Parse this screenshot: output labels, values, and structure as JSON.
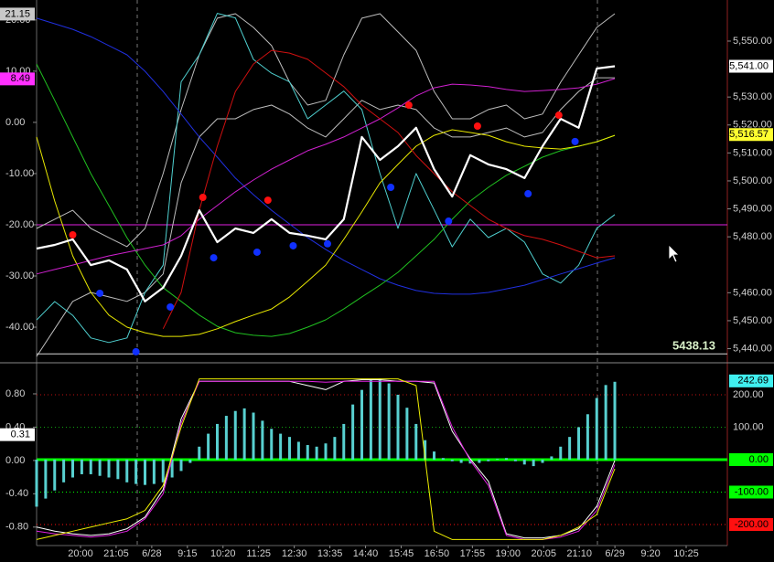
{
  "chart_data": [
    {
      "type": "line",
      "x": [
        0,
        1,
        2,
        3,
        4,
        5,
        6,
        7,
        8,
        9,
        10,
        11,
        12,
        13,
        14,
        15,
        16,
        17,
        18,
        19,
        20,
        21,
        22,
        23,
        24,
        25,
        26,
        27,
        28,
        29,
        30,
        31,
        32
      ],
      "ylim": [
        -46.6,
        23.9
      ],
      "y2lim": [
        5435.6,
        5564.7
      ],
      "yticks": [
        {
          "value": 20,
          "label": "20.00"
        },
        {
          "value": 10,
          "label": "10.00"
        },
        {
          "value": 0,
          "label": "0.00"
        },
        {
          "value": -10,
          "label": "-10.00"
        },
        {
          "value": -20,
          "label": "-20.00"
        },
        {
          "value": -30,
          "label": "-30.00"
        },
        {
          "value": -40,
          "label": "-40.00"
        }
      ],
      "y2ticks": [
        {
          "value": 5550,
          "label": "5,550.00"
        },
        {
          "value": 5530,
          "label": "5,530.00"
        },
        {
          "value": 5520,
          "label": "5,520.00"
        },
        {
          "value": 5510,
          "label": "5,510.00"
        },
        {
          "value": 5500,
          "label": "5,500.00"
        },
        {
          "value": 5490,
          "label": "5,490.00"
        },
        {
          "value": 5480,
          "label": "5,480.00"
        },
        {
          "value": 5460,
          "label": "5,460.00"
        },
        {
          "value": 5450,
          "label": "5,450.00"
        },
        {
          "value": 5440,
          "label": "5,440.00"
        }
      ],
      "series": [
        {
          "type": "line",
          "axis": "y2",
          "color": "#bdbdbd",
          "values": [
            5483.0,
            5486.3,
            5489.5,
            5483.0,
            5479.7,
            5476.5,
            5483.0,
            5502.6,
            5525.5,
            5545.1,
            5558.2,
            5559.8,
            5554.9,
            5548.4,
            5535.3,
            5527.1,
            5528.8,
            5545.1,
            5558.2,
            5559.8,
            5553.3,
            5546.7,
            5532.0,
            5522.2,
            5522.2,
            5525.5,
            5527.1,
            5522.2,
            5523.9,
            5535.3,
            5545.1,
            5554.9,
            5559.8
          ]
        },
        {
          "type": "line",
          "axis": "y2",
          "color": "#bdbdbd",
          "values": [
            5437.2,
            5447.1,
            5456.9,
            5460.1,
            5458.5,
            5456.9,
            5460.1,
            5466.7,
            5499.3,
            5515.7,
            5522.2,
            5522.2,
            5525.5,
            5527.1,
            5523.9,
            5518.9,
            5515.7,
            5522.2,
            5528.8,
            5525.5,
            5527.1,
            5525.5,
            5518.9,
            5515.7,
            5515.7,
            5517.3,
            5518.9,
            5515.7,
            5517.3,
            5525.5,
            5532.0,
            5536.9,
            5536.9
          ]
        },
        {
          "type": "line",
          "axis": "y",
          "color": "#4fd0d0",
          "values": [
            -38.6,
            -35.0,
            -37.7,
            -42.1,
            -43.0,
            -42.1,
            -33.2,
            -27.9,
            7.9,
            13.2,
            21.3,
            20.4,
            12.3,
            9.6,
            7.9,
            0.7,
            3.4,
            6.1,
            2.5,
            -10.0,
            -20.7,
            -10.0,
            -17.1,
            -24.3,
            -18.9,
            -22.5,
            -20.7,
            -23.4,
            -29.6,
            -31.4,
            -27.9,
            -20.7,
            -18.0
          ]
        },
        {
          "type": "line",
          "axis": "y2",
          "color": "#2030e0",
          "values": [
            5558.2,
            5556.2,
            5554.2,
            5551.6,
            5548.4,
            5545.1,
            5539.2,
            5532.0,
            5523.9,
            5515.7,
            5508.5,
            5501.0,
            5495.1,
            5489.5,
            5484.6,
            5479.7,
            5475.5,
            5471.6,
            5468.3,
            5465.0,
            5462.7,
            5460.8,
            5459.8,
            5459.5,
            5459.5,
            5460.1,
            5461.4,
            5462.7,
            5464.7,
            5466.7,
            5468.6,
            5470.6,
            5472.5
          ]
        },
        {
          "type": "line",
          "axis": "y2",
          "color": "#20c020",
          "values": [
            5541.8,
            5528.8,
            5515.7,
            5502.6,
            5491.2,
            5479.7,
            5469.9,
            5461.8,
            5456.9,
            5452.0,
            5448.0,
            5445.7,
            5444.8,
            5444.4,
            5445.4,
            5447.7,
            5450.3,
            5454.2,
            5458.5,
            5462.7,
            5467.3,
            5473.2,
            5479.1,
            5486.3,
            5492.8,
            5497.7,
            5502.0,
            5505.2,
            5508.5,
            5510.8,
            5512.4,
            5514.0,
            5516.3
          ]
        },
        {
          "type": "line",
          "axis": "y2",
          "color": "#e8e800",
          "values": [
            5515.7,
            5492.8,
            5473.2,
            5460.1,
            5452.0,
            5447.7,
            5445.7,
            5444.4,
            5444.4,
            5445.1,
            5447.1,
            5449.7,
            5452.0,
            5454.2,
            5458.5,
            5464.1,
            5469.9,
            5479.1,
            5488.9,
            5499.3,
            5505.9,
            5512.4,
            5516.3,
            5518.3,
            5517.3,
            5516.3,
            5514.0,
            5512.4,
            5511.8,
            5511.4,
            5512.4,
            5514.0,
            5516.3
          ]
        },
        {
          "type": "line",
          "axis": "y2",
          "color": "#d020d0",
          "values": [
            5466.7,
            5468.3,
            5469.9,
            5471.6,
            5473.2,
            5474.5,
            5475.8,
            5477.1,
            5480.4,
            5486.3,
            5491.2,
            5496.1,
            5500.3,
            5504.2,
            5507.5,
            5510.8,
            5513.1,
            5515.7,
            5518.9,
            5522.2,
            5526.1,
            5530.4,
            5533.3,
            5534.6,
            5534.3,
            5533.7,
            5532.7,
            5532.0,
            5532.3,
            5532.7,
            5533.3,
            5534.6,
            5536.6
          ]
        },
        {
          "type": "line",
          "axis": "y2",
          "color": "#d01010",
          "values": [
            null,
            null,
            null,
            null,
            null,
            null,
            null,
            5447.1,
            5460.1,
            5489.5,
            5512.4,
            5532.0,
            5541.8,
            5546.7,
            5545.7,
            5543.5,
            5538.6,
            5533.7,
            5527.1,
            5522.2,
            5517.3,
            5509.1,
            5502.6,
            5496.1,
            5491.2,
            5486.3,
            5483.0,
            5480.4,
            5479.1,
            5477.1,
            5474.8,
            5472.5,
            5473.2
          ]
        },
        {
          "type": "line",
          "axis": "y2",
          "color": "#ffffff",
          "width": 2.2,
          "values": [
            5475.8,
            5477.1,
            5479.1,
            5469.9,
            5471.6,
            5468.3,
            5456.9,
            5461.8,
            5473.2,
            5489.5,
            5478.1,
            5483.0,
            5481.4,
            5486.3,
            5481.4,
            5480.4,
            5479.1,
            5486.3,
            5515.7,
            5507.5,
            5512.4,
            5519.0,
            5504.2,
            5494.4,
            5509.2,
            5505.9,
            5504.2,
            5501.0,
            5512.4,
            5522.2,
            5519.0,
            5540.2,
            5541.0
          ]
        },
        {
          "type": "scatter",
          "axis": "y2",
          "color": "#ff1010",
          "x": [
            2.0,
            9.2,
            12.8,
            20.6,
            24.4,
            28.9
          ],
          "values": [
            5480.7,
            5494.1,
            5493.1,
            5527.1,
            5519.6,
            5523.5
          ]
        },
        {
          "type": "scatter",
          "axis": "y2",
          "color": "#1030ff",
          "x": [
            3.5,
            5.5,
            7.4,
            9.8,
            12.2,
            14.2,
            16.1,
            19.6,
            22.8,
            27.2,
            29.8
          ],
          "values": [
            5459.8,
            5438.9,
            5454.9,
            5472.5,
            5474.5,
            5476.8,
            5477.5,
            5497.7,
            5485.6,
            5495.4,
            5514.1
          ]
        }
      ],
      "levels": [
        {
          "value": -20,
          "axis": "y",
          "color": "#e020e0"
        },
        {
          "value": 5438.13,
          "label": "5438.13",
          "axis": "y2",
          "color": "#d8d8d8",
          "label_color": "#d8f0c8"
        }
      ],
      "markers": [
        {
          "value": 21.15,
          "label": "21.15",
          "axis": "y",
          "color": "#c8c8c8"
        },
        {
          "value": 8.49,
          "label": "8.49",
          "axis": "y",
          "color": "#ff30ff"
        },
        {
          "value": 5541,
          "label": "5,541.00",
          "axis": "y2",
          "color": "#ffffff"
        },
        {
          "value": 5516.57,
          "label": "5,516.57",
          "axis": "y2",
          "color": "#ffff30"
        }
      ]
    },
    {
      "type": "bar",
      "x": [
        0,
        1,
        2,
        3,
        4,
        5,
        6,
        7,
        8,
        9,
        10,
        11,
        12,
        13,
        14,
        15,
        16,
        17,
        18,
        19,
        20,
        21,
        22,
        23,
        24,
        25,
        26,
        27,
        28,
        29,
        30,
        31,
        32
      ],
      "ylim": [
        -1.0,
        1.14
      ],
      "y2lim": [
        -259.2,
        290.1
      ],
      "yticks": [
        {
          "value": 0.8,
          "label": "0.80"
        },
        {
          "value": 0.4,
          "label": "0.40"
        },
        {
          "value": 0,
          "label": "0.00"
        },
        {
          "value": -0.4,
          "label": "-0.40"
        },
        {
          "value": -0.8,
          "label": "-0.80"
        }
      ],
      "y2ticks": [
        {
          "value": 200,
          "label": "200.00"
        },
        {
          "value": 100,
          "label": "100.00"
        },
        {
          "value": 0,
          "label": "0.00"
        },
        {
          "value": -100,
          "label": "-100.00"
        },
        {
          "value": -200,
          "label": "-200.00"
        }
      ],
      "y2grid_colors": [
        "#c01010",
        "#10a010",
        "#00ff00",
        "#00ff00",
        "#ff1010"
      ],
      "y2grid_styles": [
        "dotted",
        "dotted",
        "solid",
        "dotted",
        "dotted"
      ],
      "y2tick_boxes": [
        false,
        false,
        true,
        true,
        true
      ],
      "series": [
        {
          "type": "bar",
          "axis": "y2",
          "color": "#58d0d0",
          "x": [
            0,
            0.5,
            1,
            1.5,
            2,
            2.5,
            3,
            3.5,
            4,
            4.5,
            5,
            5.5,
            6,
            6.5,
            7,
            7.5,
            8,
            8.5,
            9,
            9.5,
            10,
            10.5,
            11,
            11.5,
            12,
            12.5,
            13,
            13.5,
            14,
            14.5,
            15,
            15.5,
            16,
            16.5,
            17,
            17.5,
            18,
            18.5,
            19,
            19.5,
            20,
            20.5,
            21,
            21.5,
            22,
            22.5,
            23,
            23.5,
            24,
            24.5,
            25,
            25.5,
            26,
            26.5,
            27,
            27.5,
            28,
            28.5,
            29,
            29.5,
            30,
            30.5,
            31,
            31.5,
            32
          ],
          "values": [
            -145,
            -120,
            -95,
            -70,
            -55,
            -45,
            -45,
            -50,
            -55,
            -60,
            -70,
            -75,
            -78,
            -75,
            -70,
            -55,
            -35,
            -10,
            40,
            80,
            110,
            135,
            150,
            158,
            145,
            120,
            95,
            80,
            70,
            55,
            45,
            40,
            50,
            70,
            110,
            170,
            215,
            245,
            250,
            235,
            200,
            160,
            110,
            60,
            25,
            5,
            -5,
            -10,
            -12,
            -10,
            -5,
            2,
            5,
            -5,
            -15,
            -20,
            -10,
            10,
            40,
            70,
            100,
            140,
            190,
            230,
            240
          ]
        },
        {
          "type": "line",
          "axis": "y",
          "color": "#ffffff",
          "values": [
            -0.8,
            -0.85,
            -0.88,
            -0.9,
            -0.88,
            -0.82,
            -0.68,
            -0.35,
            0.5,
            0.95,
            0.95,
            0.95,
            0.95,
            0.95,
            0.95,
            0.9,
            0.85,
            0.95,
            0.97,
            0.97,
            0.95,
            0.95,
            0.93,
            0.35,
            0.02,
            -0.25,
            -0.88,
            -0.93,
            -0.93,
            -0.9,
            -0.82,
            -0.55,
            0.0
          ]
        },
        {
          "type": "line",
          "axis": "y",
          "color": "#e020e0",
          "values": [
            -0.85,
            -0.88,
            -0.9,
            -0.92,
            -0.9,
            -0.85,
            -0.7,
            -0.4,
            0.45,
            0.95,
            0.95,
            0.95,
            0.95,
            0.95,
            0.95,
            0.95,
            0.94,
            0.95,
            0.95,
            0.95,
            0.95,
            0.95,
            0.95,
            0.4,
            0.0,
            -0.3,
            -0.9,
            -0.95,
            -0.95,
            -0.92,
            -0.85,
            -0.6,
            -0.05
          ]
        },
        {
          "type": "line",
          "axis": "y",
          "color": "#f0f000",
          "values": [
            -0.95,
            -0.9,
            -0.85,
            -0.8,
            -0.75,
            -0.7,
            -0.6,
            -0.3,
            0.4,
            0.98,
            0.98,
            0.98,
            0.98,
            0.98,
            0.98,
            0.98,
            0.98,
            0.98,
            0.98,
            0.98,
            0.98,
            0.9,
            -0.85,
            -0.95,
            -0.95,
            -0.95,
            -0.95,
            -0.95,
            -0.95,
            -0.9,
            -0.8,
            -0.65,
            -0.1
          ]
        }
      ],
      "markers": [
        {
          "value": 0.31,
          "label": "0.31",
          "axis": "y",
          "color": "#ffffff"
        },
        {
          "value": 242.69,
          "label": "242.69",
          "axis": "y2",
          "color": "#40f0f0"
        }
      ],
      "x_tick_labels": [
        "20:00",
        "21:05",
        "6/28",
        "9:15",
        "10:20",
        "11:25",
        "12:30",
        "13:35",
        "14:40",
        "15:45",
        "16:50",
        "17:55",
        "19:00",
        "20:05",
        "21:10",
        "6/29",
        "9:20",
        "10:25"
      ]
    }
  ]
}
